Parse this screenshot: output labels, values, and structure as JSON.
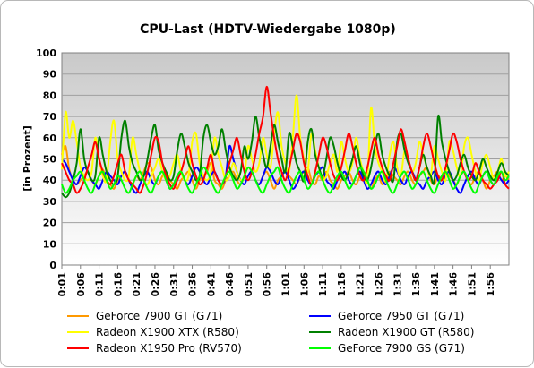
{
  "chart_data": {
    "type": "line",
    "title": "CPU-Last (HDTV-Wiedergabe 1080p)",
    "ylabel": "[in Prozent]",
    "xlabel": "",
    "ylim": [
      0,
      100
    ],
    "yticks": [
      "0",
      "10",
      "20",
      "30",
      "40",
      "50",
      "60",
      "70",
      "80",
      "90",
      "100"
    ],
    "x_tick_labels": [
      "0:01",
      "0:06",
      "0:11",
      "0:16",
      "0:21",
      "0:26",
      "0:31",
      "0:36",
      "0:41",
      "0:46",
      "0:51",
      "0:56",
      "1:01",
      "1:06",
      "1:11",
      "1:16",
      "1:21",
      "1:26",
      "1:31",
      "1:36",
      "1:41",
      "1:46",
      "1:51",
      "1:56"
    ],
    "x_range_seconds": [
      1,
      121
    ],
    "grid": "horizontal",
    "legend": "bottom",
    "series": [
      {
        "name": "GeForce 7900 GT (G71)",
        "color": "#FF9900",
        "values": [
          52,
          56,
          45,
          40,
          38,
          40,
          42,
          44,
          40,
          38,
          42,
          45,
          40,
          38,
          36,
          40,
          42,
          44,
          40,
          38,
          42,
          40,
          44,
          48,
          46,
          40,
          38,
          42,
          44,
          40,
          38,
          36,
          40,
          42,
          44,
          40,
          36,
          40,
          42,
          44,
          48,
          40,
          38,
          36,
          40,
          42,
          44,
          40,
          38,
          42,
          46,
          44,
          40,
          38,
          42,
          44,
          40,
          36,
          40,
          42,
          44,
          42,
          40,
          38,
          42,
          44,
          46,
          40,
          38,
          42,
          40,
          44,
          40,
          38,
          36,
          40,
          42,
          44,
          40,
          38,
          42,
          44,
          40,
          36,
          40,
          42,
          38,
          40,
          44,
          42,
          40,
          38,
          42,
          44,
          40,
          38,
          42,
          44,
          46,
          40,
          38,
          42,
          40,
          44,
          42,
          40,
          38,
          42,
          44,
          40,
          38,
          42,
          44,
          40,
          36,
          40,
          42,
          44,
          40,
          42,
          40
        ]
      },
      {
        "name": "GeForce 7950 GT (G71)",
        "color": "#0000FF",
        "values": [
          50,
          48,
          44,
          40,
          38,
          42,
          46,
          44,
          40,
          38,
          36,
          40,
          44,
          42,
          40,
          38,
          42,
          44,
          40,
          36,
          34,
          38,
          42,
          44,
          40,
          38,
          42,
          44,
          40,
          36,
          38,
          42,
          44,
          40,
          38,
          42,
          46,
          44,
          40,
          38,
          42,
          44,
          40,
          38,
          42,
          56,
          50,
          44,
          40,
          38,
          42,
          44,
          40,
          38,
          42,
          46,
          44,
          40,
          38,
          42,
          44,
          40,
          36,
          38,
          42,
          44,
          40,
          38,
          42,
          44,
          46,
          40,
          38,
          36,
          40,
          42,
          44,
          40,
          38,
          42,
          44,
          40,
          36,
          38,
          42,
          44,
          40,
          38,
          42,
          46,
          44,
          40,
          38,
          42,
          44,
          40,
          38,
          36,
          40,
          42,
          44,
          40,
          38,
          42,
          44,
          40,
          36,
          34,
          38,
          42,
          44,
          40,
          38,
          42,
          44,
          40,
          38,
          42,
          40,
          38,
          40
        ]
      },
      {
        "name": "Radeon X1900 XTX (R580)",
        "color": "#FFFF00",
        "values": [
          45,
          72,
          60,
          68,
          58,
          46,
          42,
          40,
          44,
          60,
          50,
          42,
          40,
          58,
          68,
          50,
          44,
          40,
          42,
          60,
          52,
          44,
          40,
          38,
          42,
          46,
          50,
          44,
          40,
          42,
          48,
          52,
          44,
          40,
          42,
          58,
          62,
          48,
          42,
          40,
          44,
          60,
          52,
          46,
          40,
          42,
          48,
          44,
          40,
          42,
          56,
          50,
          44,
          48,
          60,
          52,
          46,
          62,
          72,
          56,
          48,
          44,
          60,
          80,
          60,
          50,
          44,
          62,
          54,
          46,
          40,
          42,
          48,
          52,
          44,
          58,
          50,
          44,
          48,
          60,
          50,
          44,
          40,
          74,
          56,
          48,
          44,
          40,
          52,
          58,
          46,
          42,
          54,
          50,
          44,
          48,
          58,
          52,
          46,
          42,
          56,
          50,
          44,
          40,
          58,
          54,
          46,
          42,
          56,
          60,
          52,
          44,
          40,
          48,
          52,
          46,
          40,
          44,
          50,
          42,
          44
        ]
      },
      {
        "name": "Radeon X1900 GT (R580)",
        "color": "#008000",
        "values": [
          34,
          32,
          34,
          40,
          48,
          64,
          50,
          44,
          40,
          42,
          60,
          52,
          44,
          40,
          38,
          42,
          60,
          68,
          56,
          48,
          44,
          40,
          42,
          50,
          60,
          66,
          54,
          48,
          44,
          40,
          42,
          54,
          62,
          56,
          48,
          44,
          40,
          42,
          60,
          66,
          58,
          52,
          56,
          64,
          54,
          46,
          42,
          40,
          44,
          56,
          50,
          58,
          70,
          60,
          52,
          46,
          56,
          66,
          58,
          50,
          44,
          62,
          56,
          48,
          44,
          40,
          58,
          64,
          52,
          46,
          42,
          50,
          60,
          56,
          48,
          42,
          40,
          44,
          50,
          56,
          48,
          42,
          40,
          46,
          56,
          62,
          52,
          46,
          42,
          40,
          58,
          62,
          54,
          48,
          44,
          40,
          46,
          52,
          46,
          42,
          40,
          70,
          58,
          50,
          44,
          40,
          42,
          48,
          52,
          46,
          42,
          40,
          44,
          50,
          46,
          42,
          40,
          44,
          48,
          44,
          42
        ]
      },
      {
        "name": "Radeon X1950 Pro (RV570)",
        "color": "#FF0000",
        "values": [
          48,
          44,
          40,
          38,
          34,
          36,
          40,
          46,
          52,
          58,
          50,
          44,
          40,
          38,
          42,
          48,
          52,
          44,
          40,
          38,
          36,
          34,
          38,
          44,
          52,
          60,
          58,
          48,
          42,
          38,
          36,
          40,
          44,
          50,
          56,
          48,
          42,
          38,
          40,
          46,
          52,
          44,
          40,
          38,
          42,
          48,
          54,
          60,
          52,
          44,
          40,
          44,
          52,
          62,
          70,
          84,
          72,
          60,
          50,
          44,
          40,
          46,
          54,
          62,
          58,
          48,
          42,
          38,
          44,
          52,
          60,
          56,
          48,
          42,
          40,
          46,
          54,
          62,
          56,
          48,
          42,
          40,
          46,
          54,
          60,
          52,
          46,
          42,
          40,
          48,
          56,
          64,
          58,
          50,
          44,
          40,
          46,
          56,
          62,
          56,
          48,
          42,
          40,
          46,
          54,
          62,
          58,
          50,
          44,
          40,
          42,
          48,
          44,
          40,
          38,
          36,
          38,
          40,
          44,
          38,
          36
        ]
      },
      {
        "name": "GeForce 7900 GS (G71)",
        "color": "#00FF00",
        "values": [
          38,
          34,
          36,
          40,
          42,
          44,
          40,
          36,
          34,
          38,
          42,
          44,
          40,
          36,
          38,
          42,
          40,
          36,
          34,
          38,
          42,
          44,
          40,
          36,
          34,
          38,
          42,
          44,
          40,
          36,
          38,
          42,
          44,
          40,
          36,
          34,
          38,
          42,
          46,
          44,
          40,
          36,
          34,
          38,
          42,
          44,
          40,
          36,
          38,
          42,
          46,
          44,
          40,
          36,
          34,
          38,
          42,
          44,
          46,
          40,
          36,
          34,
          38,
          42,
          44,
          40,
          36,
          38,
          42,
          44,
          40,
          36,
          34,
          38,
          42,
          44,
          40,
          36,
          38,
          42,
          46,
          44,
          40,
          36,
          38,
          42,
          44,
          40,
          36,
          34,
          38,
          42,
          44,
          40,
          36,
          38,
          42,
          44,
          40,
          36,
          34,
          38,
          42,
          44,
          40,
          36,
          38,
          42,
          44,
          40,
          36,
          34,
          38,
          42,
          44,
          40,
          38,
          42,
          44,
          40,
          42
        ]
      }
    ]
  }
}
